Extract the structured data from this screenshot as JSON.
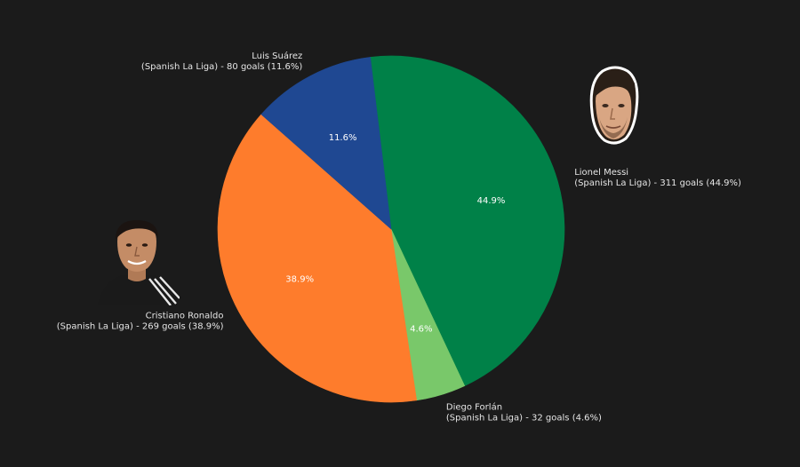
{
  "chart_data": {
    "type": "pie",
    "title": "",
    "start_angle_deg": 96.9,
    "direction": "clockwise",
    "slices": [
      {
        "name_line": "Lionel Messi",
        "detail_line": "(Spanish La Liga) - 311 goals (44.9%)",
        "value": 311,
        "percent_label": "44.9%",
        "color": "#008148"
      },
      {
        "name_line": "Diego Forlán",
        "detail_line": "(Spanish La Liga) - 32 goals (4.6%)",
        "value": 32,
        "percent_label": "4.6%",
        "color": "#79c86a"
      },
      {
        "name_line": "Cristiano Ronaldo",
        "detail_line": "(Spanish La Liga) - 269 goals (38.9%)",
        "value": 269,
        "percent_label": "38.9%",
        "color": "#fe7c2c"
      },
      {
        "name_line": "Luis Suárez",
        "detail_line": "(Spanish La Liga) - 80 goals (11.6%)",
        "value": 80,
        "percent_label": "11.6%",
        "color": "#1f4892"
      }
    ]
  },
  "portraits": [
    {
      "icon": "messi-portrait-icon",
      "skin": "#d9a683",
      "hair": "#2a1f17",
      "shirt": "#ffffff"
    },
    {
      "icon": "ronaldo-portrait-icon",
      "skin": "#c48c66",
      "hair": "#1b1411",
      "shirt": "#1a1a1a"
    }
  ]
}
